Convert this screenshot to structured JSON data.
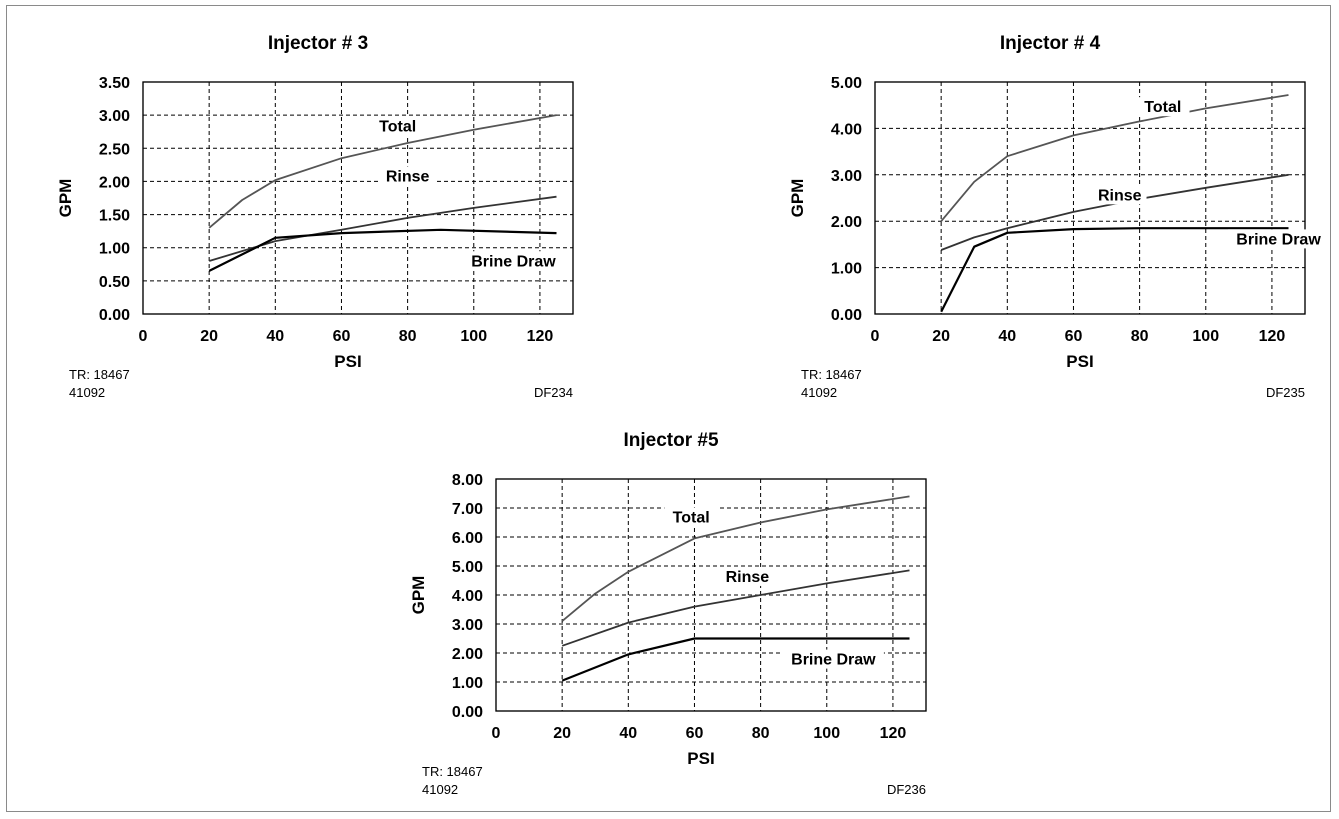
{
  "chart_data": [
    {
      "id": "chart3",
      "type": "line",
      "title": "Injector # 3",
      "xlabel": "PSI",
      "ylabel": "GPM",
      "xlim": [
        0,
        130
      ],
      "ylim": [
        0,
        3.5
      ],
      "xticks": [
        0,
        20,
        40,
        60,
        80,
        100,
        120
      ],
      "yticks": [
        "0.00",
        "0.50",
        "1.00",
        "1.50",
        "2.00",
        "2.50",
        "3.00",
        "3.50"
      ],
      "grid": true,
      "series": [
        {
          "name": "Total",
          "color": "#555555",
          "x": [
            20,
            30,
            40,
            60,
            80,
            100,
            125
          ],
          "y": [
            1.3,
            1.72,
            2.02,
            2.35,
            2.58,
            2.78,
            3.0
          ]
        },
        {
          "name": "Rinse",
          "color": "#333333",
          "x": [
            20,
            40,
            60,
            80,
            100,
            125
          ],
          "y": [
            0.8,
            1.1,
            1.27,
            1.45,
            1.6,
            1.77
          ]
        },
        {
          "name": "Brine Draw",
          "color": "#000000",
          "x": [
            20,
            40,
            60,
            90,
            125
          ],
          "y": [
            0.65,
            1.15,
            1.22,
            1.27,
            1.22
          ]
        }
      ],
      "notes": {
        "tr": "TR: 18467",
        "part": "41092",
        "code": "DF234"
      }
    },
    {
      "id": "chart4",
      "type": "line",
      "title": "Injector # 4",
      "xlabel": "PSI",
      "ylabel": "GPM",
      "xlim": [
        0,
        130
      ],
      "ylim": [
        0,
        5
      ],
      "xticks": [
        0,
        20,
        40,
        60,
        80,
        100,
        120
      ],
      "yticks": [
        "0.00",
        "1.00",
        "2.00",
        "3.00",
        "4.00",
        "5.00"
      ],
      "grid": true,
      "series": [
        {
          "name": "Total",
          "color": "#555555",
          "x": [
            20,
            30,
            40,
            60,
            80,
            100,
            125
          ],
          "y": [
            2.0,
            2.85,
            3.4,
            3.85,
            4.15,
            4.43,
            4.72
          ]
        },
        {
          "name": "Rinse",
          "color": "#333333",
          "x": [
            20,
            30,
            40,
            60,
            80,
            100,
            125
          ],
          "y": [
            1.38,
            1.65,
            1.85,
            2.2,
            2.48,
            2.72,
            3.0
          ]
        },
        {
          "name": "Brine Draw",
          "color": "#000000",
          "x": [
            20,
            30,
            40,
            60,
            80,
            125
          ],
          "y": [
            0.05,
            1.45,
            1.75,
            1.83,
            1.85,
            1.85
          ]
        }
      ],
      "notes": {
        "tr": "TR: 18467",
        "part": "41092",
        "code": "DF235"
      }
    },
    {
      "id": "chart5",
      "type": "line",
      "title": "Injector #5",
      "xlabel": "PSI",
      "ylabel": "GPM",
      "xlim": [
        0,
        130
      ],
      "ylim": [
        0,
        8
      ],
      "xticks": [
        0,
        20,
        40,
        60,
        80,
        100,
        120
      ],
      "yticks": [
        "0.00",
        "1.00",
        "2.00",
        "3.00",
        "4.00",
        "5.00",
        "6.00",
        "7.00",
        "8.00"
      ],
      "grid": true,
      "series": [
        {
          "name": "Total",
          "color": "#555555",
          "x": [
            20,
            30,
            40,
            60,
            80,
            100,
            125
          ],
          "y": [
            3.1,
            4.05,
            4.8,
            5.95,
            6.5,
            6.95,
            7.4
          ]
        },
        {
          "name": "Rinse",
          "color": "#333333",
          "x": [
            20,
            40,
            60,
            80,
            100,
            125
          ],
          "y": [
            2.25,
            3.05,
            3.6,
            4.0,
            4.4,
            4.85
          ]
        },
        {
          "name": "Brine Draw",
          "color": "#000000",
          "x": [
            20,
            40,
            60,
            80,
            125
          ],
          "y": [
            1.05,
            1.95,
            2.5,
            2.5,
            2.5
          ]
        }
      ],
      "notes": {
        "tr": "TR: 18467",
        "part": "41092",
        "code": "DF236"
      }
    }
  ]
}
